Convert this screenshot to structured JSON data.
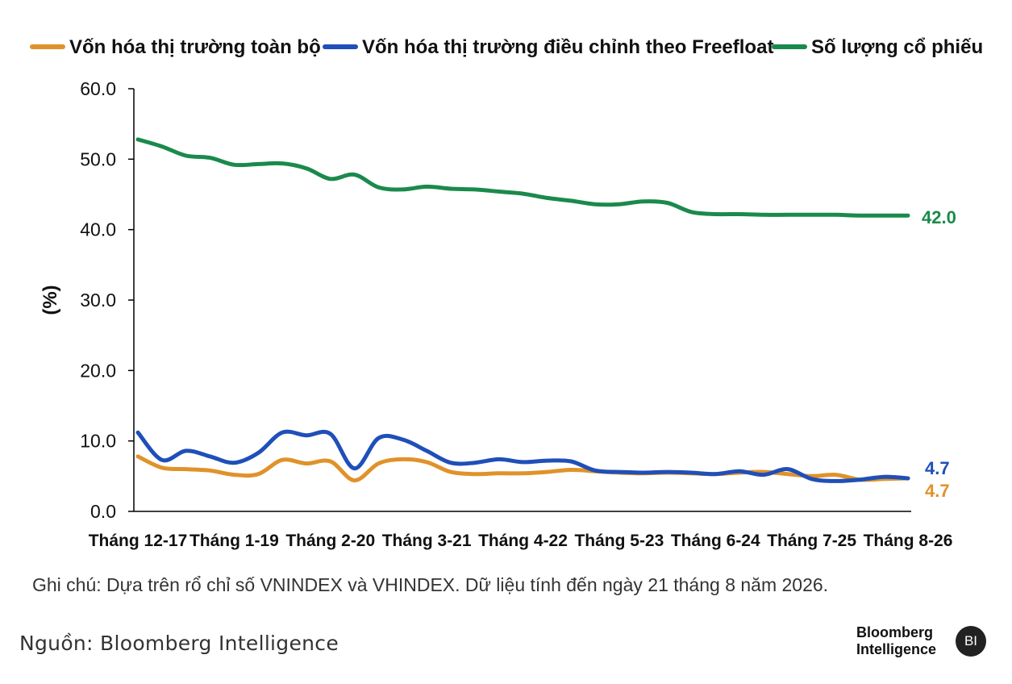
{
  "colors": {
    "total": "#E0922A",
    "freefloat": "#1F4FB8",
    "count": "#1A8A4C",
    "axis": "#000000",
    "text": "#111111"
  },
  "chart_data": {
    "type": "line",
    "ylabel": "(%)",
    "xlabel": "",
    "ylim": [
      0,
      60
    ],
    "yticks": [
      "0.0",
      "10.0",
      "20.0",
      "30.0",
      "40.0",
      "50.0",
      "60.0"
    ],
    "grid": false,
    "legend_position": "top",
    "categories": [
      "Tháng 12-17",
      "Tháng 1-19",
      "Tháng 2-20",
      "Tháng 3-21",
      "Tháng 4-22",
      "Tháng 5-23",
      "Tháng 6-24",
      "Tháng 7-25",
      "Tháng 8-26"
    ],
    "x": [
      0,
      0.25,
      0.5,
      0.75,
      1,
      1.25,
      1.5,
      1.75,
      2,
      2.25,
      2.5,
      2.75,
      3,
      3.25,
      3.5,
      3.75,
      4,
      4.25,
      4.5,
      4.75,
      5,
      5.25,
      5.5,
      5.75,
      6,
      6.25,
      6.5,
      6.75,
      7,
      7.25,
      7.5,
      7.75,
      8
    ],
    "series": [
      {
        "name": "Vốn hóa thị trường toàn bộ",
        "color_key": "total",
        "end_label": "4.7",
        "values": [
          7.8,
          6.2,
          6.0,
          5.8,
          5.2,
          5.3,
          7.3,
          6.8,
          7.1,
          4.4,
          6.8,
          7.4,
          7.0,
          5.6,
          5.3,
          5.4,
          5.4,
          5.6,
          5.9,
          5.7,
          5.5,
          5.4,
          5.5,
          5.4,
          5.3,
          5.5,
          5.6,
          5.3,
          5.0,
          5.2,
          4.5,
          4.6,
          4.7
        ]
      },
      {
        "name": "Vốn hóa thị trường điều chỉnh theo Freefloat",
        "color_key": "freefloat",
        "end_label": "4.7",
        "values": [
          11.2,
          7.3,
          8.6,
          7.8,
          6.9,
          8.3,
          11.2,
          10.8,
          11.0,
          6.1,
          10.4,
          10.2,
          8.6,
          6.9,
          6.9,
          7.4,
          7.0,
          7.2,
          7.1,
          5.8,
          5.6,
          5.5,
          5.6,
          5.5,
          5.3,
          5.7,
          5.2,
          6.0,
          4.6,
          4.3,
          4.5,
          4.9,
          4.7
        ]
      },
      {
        "name": "Số lượng cổ phiếu",
        "color_key": "count",
        "end_label": "42.0",
        "values": [
          52.8,
          51.8,
          50.5,
          50.2,
          49.2,
          49.3,
          49.4,
          48.7,
          47.2,
          47.8,
          46.0,
          45.7,
          46.1,
          45.8,
          45.7,
          45.4,
          45.1,
          44.5,
          44.1,
          43.6,
          43.6,
          44.0,
          43.8,
          42.5,
          42.2,
          42.2,
          42.1,
          42.1,
          42.1,
          42.1,
          42.0,
          42.0,
          42.0
        ]
      }
    ]
  },
  "note": "Ghi chú: Dựa trên rổ chỉ số VNINDEX và VHINDEX. Dữ liệu tính đến ngày 21 tháng 8 năm 2026.",
  "source": "Nguồn:  Bloomberg  Intelligence",
  "brand": {
    "line1": "Bloomberg",
    "line2": "Intelligence",
    "badge": "BI"
  }
}
